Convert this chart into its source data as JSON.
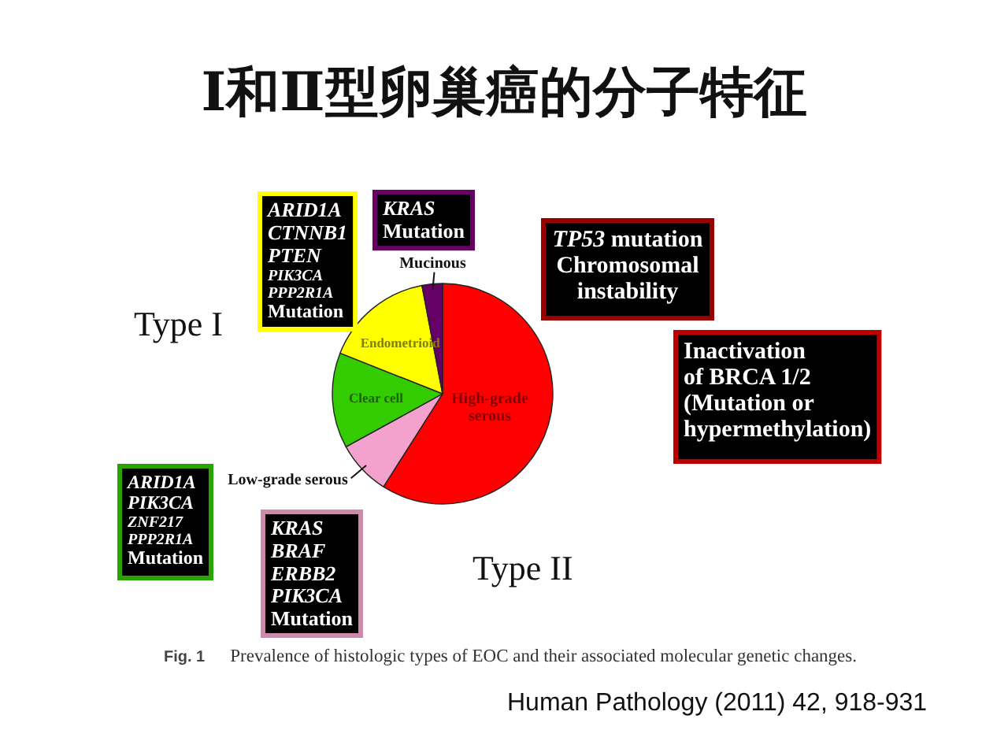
{
  "chart_data": {
    "type": "pie",
    "title": "Ⅰ和Ⅱ型卵巢癌的分子特征",
    "categories": [
      "High-grade serous",
      "Low-grade serous",
      "Clear cell",
      "Endometrioid",
      "Mucinous"
    ],
    "values": [
      59,
      8,
      14,
      16,
      3
    ],
    "colors": [
      "#ff0000",
      "#f2a2cc",
      "#33cc00",
      "#ffff00",
      "#660066"
    ],
    "annotations": [
      "*ARID1A*\n*CTNNB1*\n*PTEN*\n*PIK3CA*\n*PPP2R1A*\nMutation",
      "*KRAS*\nMutation",
      "*TP53* mutation\nChromosomal\ninstability",
      "Inactivation\nof BRCA 1/2\n(Mutation or\nhypermethylation)",
      "*ARID1A*\n*PIK3CA*\n*ZNF217*\n*PPP2R1A*\nMutation",
      "*KRAS*\n*BRAF*\n*ERBB2*\n*PIK3CA*\nMutation",
      "Type I",
      "Type II",
      "**Fig. 1** Prevalence of histologic types of EOC and their associated molecular genetic changes.",
      "Human Pathology (2011) 42, 918-931"
    ]
  }
}
